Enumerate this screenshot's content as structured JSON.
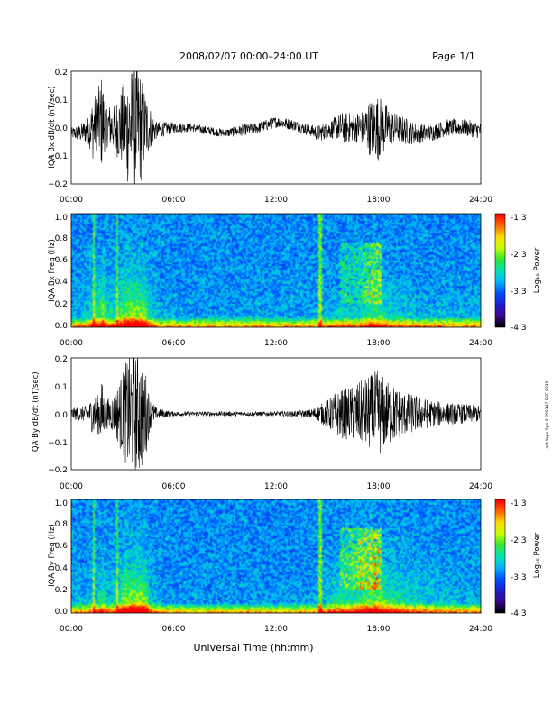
{
  "header": {
    "title": "2008/02/07  00:00–24:00 UT",
    "page": "Page 1/1"
  },
  "side_note": "nat tape 9pn 9 999147 DSF 8919",
  "x_axis": {
    "label": "Universal Time (hh:mm)",
    "ticks": [
      "00:00",
      "06:00",
      "12:00",
      "18:00",
      "24:00"
    ]
  },
  "colorbar": {
    "label": "Log₁₀ Power",
    "ticks": [
      "-1.3",
      "-2.3",
      "-3.3",
      "-4.3"
    ]
  },
  "colors": {
    "trace": "#000000",
    "colormap": [
      "#000000",
      "#3a0a8c",
      "#1e1ed2",
      "#0050ff",
      "#00b4ff",
      "#00e6b4",
      "#32e632",
      "#c8ff00",
      "#ffdc00",
      "#ff6400",
      "#ff0000"
    ]
  },
  "chart_data": [
    {
      "type": "line",
      "title": "IQA Bx dB/dt (nT/sec)",
      "ylabel": "IQA Bx dB/dt (nT/sec)",
      "yticks": [
        "0.2",
        "0.1",
        "0.0",
        "−0.1",
        "−0.2"
      ],
      "ylim": [
        -0.2,
        0.2
      ],
      "xlim_hours": [
        0,
        24
      ],
      "envelope": {
        "x_hours": [
          0,
          0.5,
          1.0,
          1.3,
          1.5,
          1.8,
          2.0,
          2.5,
          3.0,
          3.4,
          3.7,
          4.0,
          4.3,
          4.6,
          5.0,
          6,
          7,
          8,
          9,
          10,
          11,
          12,
          13,
          14,
          14.5,
          15,
          15.5,
          16,
          16.5,
          17,
          17.5,
          18,
          18.5,
          19,
          19.5,
          20,
          21,
          22,
          23,
          24
        ],
        "center": [
          -0.02,
          -0.02,
          -0.01,
          0.0,
          0.02,
          0.02,
          0.01,
          0.0,
          0.0,
          0.0,
          0.0,
          0.0,
          0.0,
          0.0,
          -0.01,
          0.0,
          0.0,
          -0.01,
          -0.02,
          -0.01,
          0.0,
          0.02,
          0.01,
          -0.01,
          -0.02,
          -0.01,
          0.0,
          0.0,
          0.0,
          0.0,
          0.0,
          0.0,
          0.0,
          0.0,
          -0.01,
          -0.02,
          -0.02,
          0.0,
          0.0,
          -0.01
        ],
        "amplitude": [
          0.02,
          0.03,
          0.05,
          0.12,
          0.1,
          0.18,
          0.08,
          0.08,
          0.15,
          0.22,
          0.22,
          0.22,
          0.14,
          0.08,
          0.03,
          0.02,
          0.015,
          0.015,
          0.015,
          0.02,
          0.02,
          0.02,
          0.02,
          0.02,
          0.03,
          0.03,
          0.04,
          0.06,
          0.05,
          0.06,
          0.1,
          0.12,
          0.08,
          0.05,
          0.05,
          0.04,
          0.03,
          0.03,
          0.03,
          0.03
        ]
      }
    },
    {
      "type": "heatmap",
      "title": "IQA Bx Freq (Hz)",
      "ylabel": "IQA Bx Freq (Hz)",
      "yticks": [
        "1.0",
        "0.8",
        "0.6",
        "0.4",
        "0.2",
        "0.0"
      ],
      "ylim_hz": [
        0,
        1.0
      ],
      "color_range_log10": [
        -4.3,
        -1.3
      ]
    },
    {
      "type": "line",
      "title": "IQA By dB/dt (nT/sec)",
      "ylabel": "IQA By dB/dt (nT/sec)",
      "yticks": [
        "0.2",
        "0.1",
        "0.0",
        "−0.1",
        "−0.2"
      ],
      "ylim": [
        -0.2,
        0.2
      ],
      "xlim_hours": [
        0,
        24
      ],
      "envelope": {
        "x_hours": [
          0,
          0.5,
          1.0,
          1.3,
          1.5,
          1.8,
          2.0,
          2.5,
          3.0,
          3.4,
          3.7,
          4.0,
          4.3,
          4.6,
          5.0,
          6,
          7,
          8,
          9,
          10,
          11,
          12,
          13,
          14,
          14.5,
          15,
          15.5,
          16,
          16.5,
          17,
          17.5,
          18,
          18.5,
          19,
          19.5,
          20,
          21,
          22,
          23,
          24
        ],
        "center": [
          0.0,
          0.0,
          0.0,
          0.0,
          0.0,
          0.0,
          0.0,
          0.0,
          0.0,
          0.0,
          0.0,
          0.0,
          0.0,
          0.0,
          0.0,
          0.0,
          0.0,
          0.0,
          0.0,
          0.0,
          0.0,
          0.0,
          0.0,
          0.0,
          0.0,
          0.0,
          0.0,
          0.0,
          0.0,
          0.0,
          0.0,
          0.0,
          0.0,
          0.0,
          0.0,
          0.0,
          0.0,
          0.0,
          0.0,
          0.0
        ],
        "amplitude": [
          0.02,
          0.025,
          0.03,
          0.08,
          0.06,
          0.12,
          0.05,
          0.07,
          0.15,
          0.22,
          0.22,
          0.22,
          0.18,
          0.06,
          0.02,
          0.008,
          0.008,
          0.008,
          0.008,
          0.008,
          0.008,
          0.008,
          0.01,
          0.015,
          0.03,
          0.05,
          0.08,
          0.09,
          0.1,
          0.12,
          0.14,
          0.16,
          0.12,
          0.1,
          0.08,
          0.07,
          0.05,
          0.04,
          0.035,
          0.03
        ]
      }
    },
    {
      "type": "heatmap",
      "title": "IQA By Freq (Hz)",
      "ylabel": "IQA By Freq (Hz)",
      "yticks": [
        "1.0",
        "0.8",
        "0.6",
        "0.4",
        "0.2",
        "0.0"
      ],
      "ylim_hz": [
        0,
        1.0
      ],
      "color_range_log10": [
        -4.3,
        -1.3
      ]
    }
  ]
}
